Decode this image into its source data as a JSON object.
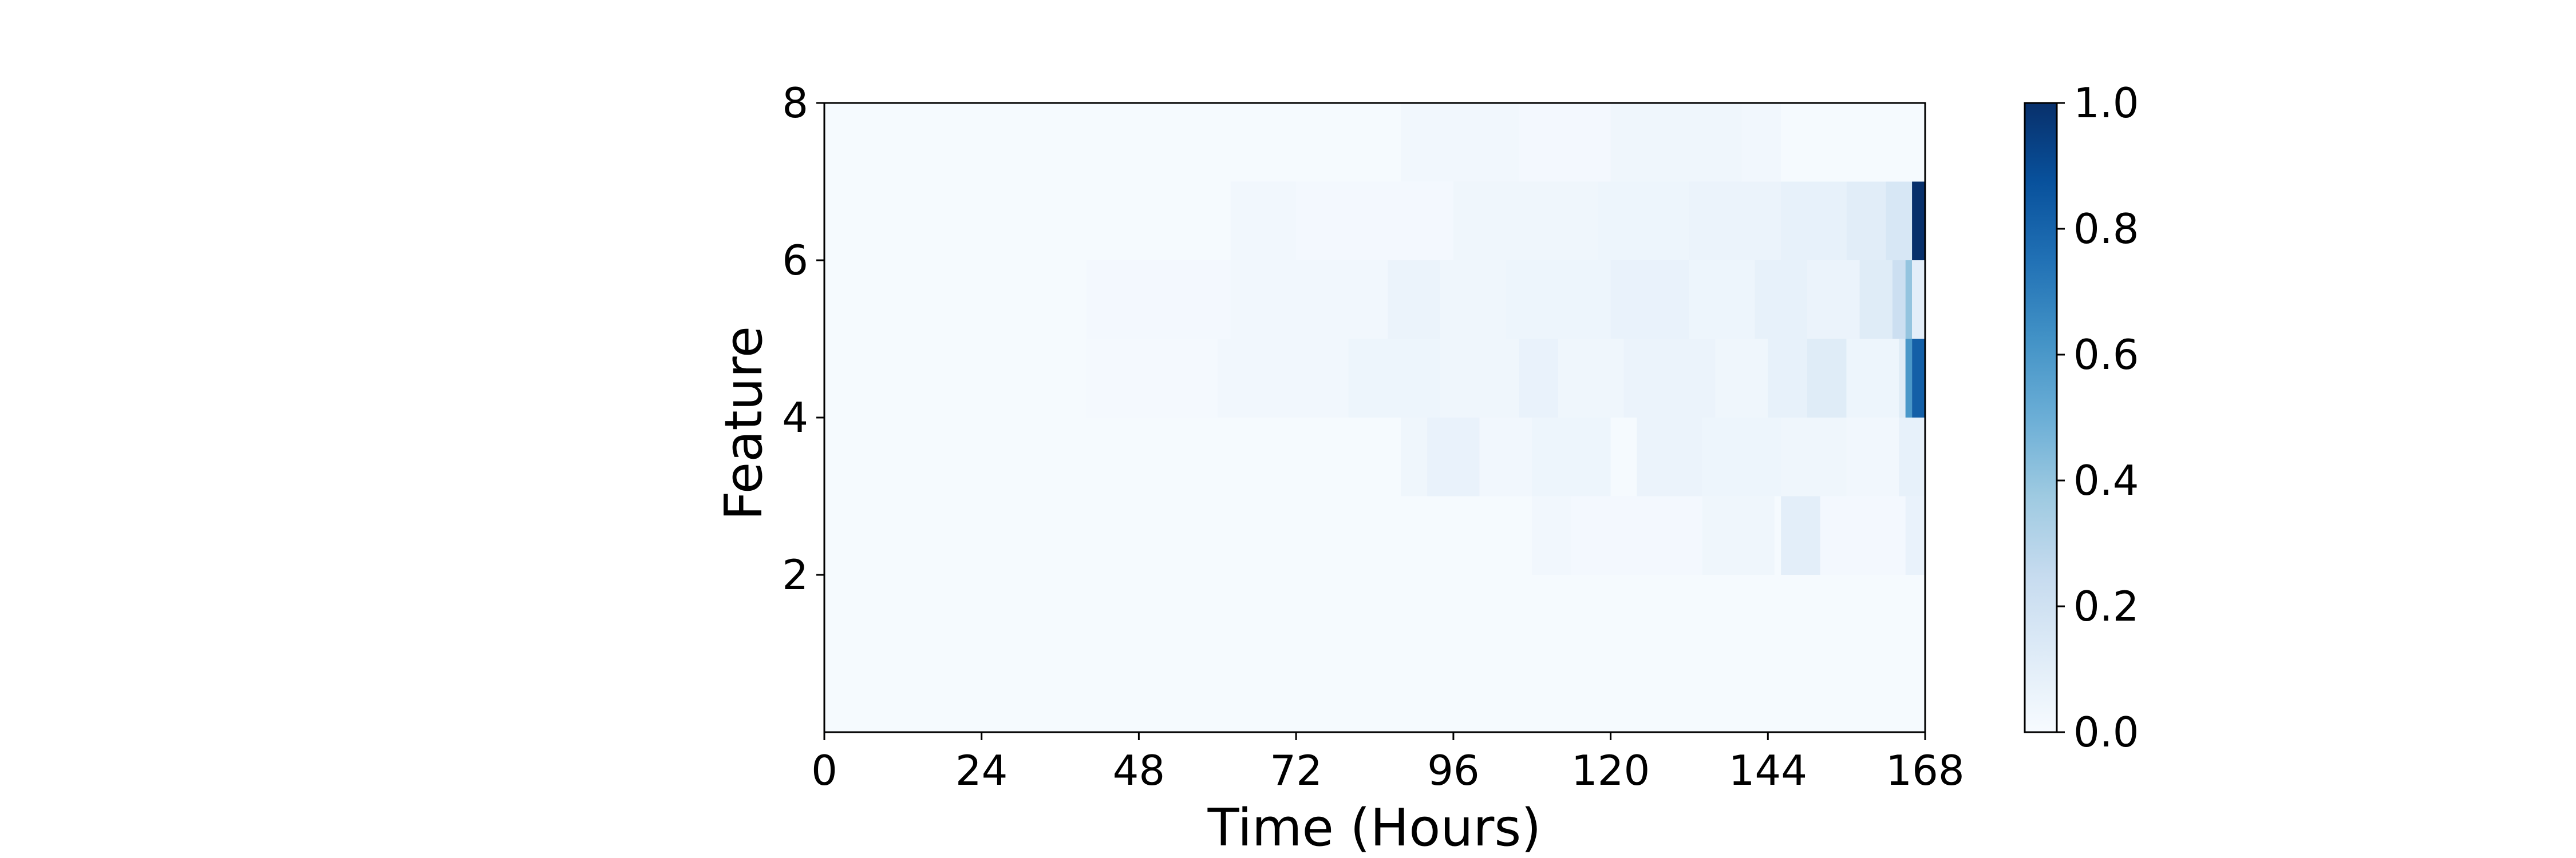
{
  "chart_data": {
    "type": "heatmap",
    "title": "",
    "xlabel": "Time (Hours)",
    "ylabel": "Feature",
    "xlim": [
      0,
      168
    ],
    "ylim": [
      0,
      8
    ],
    "x_ticks": [
      "0",
      "24",
      "48",
      "72",
      "96",
      "120",
      "144",
      "168"
    ],
    "y_ticks": [
      "2",
      "4",
      "6",
      "8"
    ],
    "colormap": {
      "name": "Blues",
      "low_color": "#f7fbff",
      "high_color": "#08306b",
      "min": 0.0,
      "max": 1.0
    },
    "colorbar_ticks": [
      "0.0",
      "0.2",
      "0.4",
      "0.6",
      "0.8",
      "1.0"
    ],
    "rows": [
      {
        "feature": "0-1",
        "cells": [
          {
            "x0": 0,
            "x1": 168,
            "v": 0.01
          }
        ]
      },
      {
        "feature": "1-2",
        "cells": [
          {
            "x0": 0,
            "x1": 168,
            "v": 0.01
          }
        ]
      },
      {
        "feature": "2-3",
        "cells": [
          {
            "x0": 108,
            "x1": 114,
            "v": 0.03
          },
          {
            "x0": 114,
            "x1": 134,
            "v": 0.02
          },
          {
            "x0": 134,
            "x1": 145,
            "v": 0.04
          },
          {
            "x0": 146,
            "x1": 152,
            "v": 0.1
          },
          {
            "x0": 152,
            "x1": 165,
            "v": 0.02
          },
          {
            "x0": 165,
            "x1": 168,
            "v": 0.07
          }
        ]
      },
      {
        "feature": "3-4",
        "cells": [
          {
            "x0": 88,
            "x1": 92,
            "v": 0.04
          },
          {
            "x0": 92,
            "x1": 100,
            "v": 0.07
          },
          {
            "x0": 100,
            "x1": 108,
            "v": 0.03
          },
          {
            "x0": 108,
            "x1": 120,
            "v": 0.05
          },
          {
            "x0": 124,
            "x1": 134,
            "v": 0.06
          },
          {
            "x0": 134,
            "x1": 146,
            "v": 0.05
          },
          {
            "x0": 146,
            "x1": 156,
            "v": 0.04
          },
          {
            "x0": 156,
            "x1": 164,
            "v": 0.03
          },
          {
            "x0": 164,
            "x1": 168,
            "v": 0.08
          }
        ]
      },
      {
        "feature": "4-5",
        "cells": [
          {
            "x0": 40,
            "x1": 60,
            "v": 0.015
          },
          {
            "x0": 60,
            "x1": 80,
            "v": 0.03
          },
          {
            "x0": 80,
            "x1": 94,
            "v": 0.05
          },
          {
            "x0": 94,
            "x1": 106,
            "v": 0.04
          },
          {
            "x0": 106,
            "x1": 112,
            "v": 0.07
          },
          {
            "x0": 112,
            "x1": 122,
            "v": 0.04
          },
          {
            "x0": 122,
            "x1": 136,
            "v": 0.06
          },
          {
            "x0": 136,
            "x1": 144,
            "v": 0.04
          },
          {
            "x0": 144,
            "x1": 150,
            "v": 0.08
          },
          {
            "x0": 150,
            "x1": 156,
            "v": 0.12
          },
          {
            "x0": 156,
            "x1": 164,
            "v": 0.05
          },
          {
            "x0": 164,
            "x1": 165,
            "v": 0.12
          },
          {
            "x0": 165,
            "x1": 166,
            "v": 0.6
          },
          {
            "x0": 166,
            "x1": 168,
            "v": 0.82
          }
        ]
      },
      {
        "feature": "5-6",
        "cells": [
          {
            "x0": 40,
            "x1": 62,
            "v": 0.02
          },
          {
            "x0": 62,
            "x1": 86,
            "v": 0.03
          },
          {
            "x0": 86,
            "x1": 94,
            "v": 0.06
          },
          {
            "x0": 94,
            "x1": 104,
            "v": 0.04
          },
          {
            "x0": 104,
            "x1": 120,
            "v": 0.05
          },
          {
            "x0": 120,
            "x1": 132,
            "v": 0.07
          },
          {
            "x0": 132,
            "x1": 142,
            "v": 0.05
          },
          {
            "x0": 142,
            "x1": 150,
            "v": 0.08
          },
          {
            "x0": 150,
            "x1": 158,
            "v": 0.06
          },
          {
            "x0": 158,
            "x1": 163,
            "v": 0.12
          },
          {
            "x0": 163,
            "x1": 165,
            "v": 0.22
          },
          {
            "x0": 165,
            "x1": 166,
            "v": 0.4
          },
          {
            "x0": 166,
            "x1": 168,
            "v": 0.1
          }
        ]
      },
      {
        "feature": "6-7",
        "cells": [
          {
            "x0": 62,
            "x1": 72,
            "v": 0.03
          },
          {
            "x0": 72,
            "x1": 96,
            "v": 0.02
          },
          {
            "x0": 96,
            "x1": 118,
            "v": 0.04
          },
          {
            "x0": 118,
            "x1": 132,
            "v": 0.05
          },
          {
            "x0": 132,
            "x1": 146,
            "v": 0.06
          },
          {
            "x0": 146,
            "x1": 156,
            "v": 0.08
          },
          {
            "x0": 156,
            "x1": 162,
            "v": 0.11
          },
          {
            "x0": 162,
            "x1": 166,
            "v": 0.16
          },
          {
            "x0": 166,
            "x1": 168,
            "v": 1.0
          }
        ]
      },
      {
        "feature": "7-8",
        "cells": [
          {
            "x0": 88,
            "x1": 106,
            "v": 0.03
          },
          {
            "x0": 106,
            "x1": 120,
            "v": 0.02
          },
          {
            "x0": 120,
            "x1": 140,
            "v": 0.04
          },
          {
            "x0": 140,
            "x1": 146,
            "v": 0.03
          }
        ]
      }
    ]
  }
}
